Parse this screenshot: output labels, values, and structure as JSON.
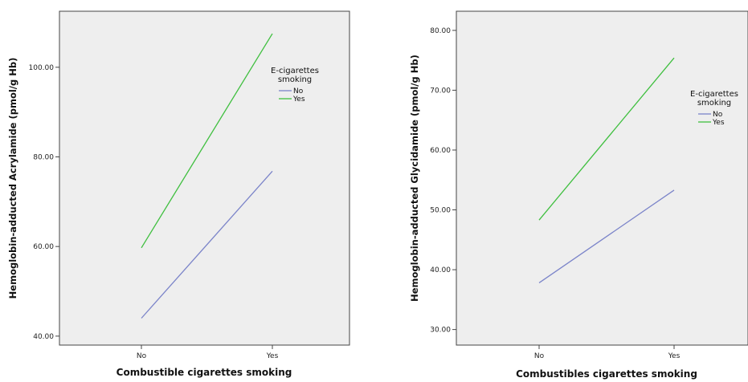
{
  "chart_data": [
    {
      "type": "line",
      "xlabel": "Combustible cigarettes smoking",
      "ylabel": "Hemoglobin-adducted Acrylamide (pmol/g Hb)",
      "categories": [
        "No",
        "Yes"
      ],
      "yticks": [
        "40.00",
        "60.00",
        "80.00",
        "100.00"
      ],
      "ylim": [
        38.0,
        112.5
      ],
      "legend": {
        "title_line1": "E-cigarettes",
        "title_line2": "smoking",
        "placement": "right"
      },
      "series": [
        {
          "name": "No",
          "values": [
            44.0,
            76.8
          ],
          "color": "#7b84c9"
        },
        {
          "name": "Yes",
          "values": [
            59.7,
            107.5
          ],
          "color": "#3fbf3f"
        }
      ],
      "grid": false,
      "plot_bg": "#eeeeee"
    },
    {
      "type": "line",
      "xlabel": "Combustibles cigarettes smoking",
      "ylabel": "Hemoglobin-adducted Glycidamide (pmol/g Hb)",
      "categories": [
        "No",
        "Yes"
      ],
      "yticks": [
        "30.00",
        "40.00",
        "50.00",
        "60.00",
        "70.00",
        "80.00"
      ],
      "ylim": [
        27.4,
        83.2
      ],
      "legend": {
        "title_line1": "E-cigarettes",
        "title_line2": "smoking",
        "placement": "right"
      },
      "series": [
        {
          "name": "No",
          "values": [
            37.8,
            53.3
          ],
          "color": "#7b84c9"
        },
        {
          "name": "Yes",
          "values": [
            48.3,
            75.4
          ],
          "color": "#3fbf3f"
        }
      ],
      "grid": false,
      "plot_bg": "#eeeeee"
    }
  ]
}
